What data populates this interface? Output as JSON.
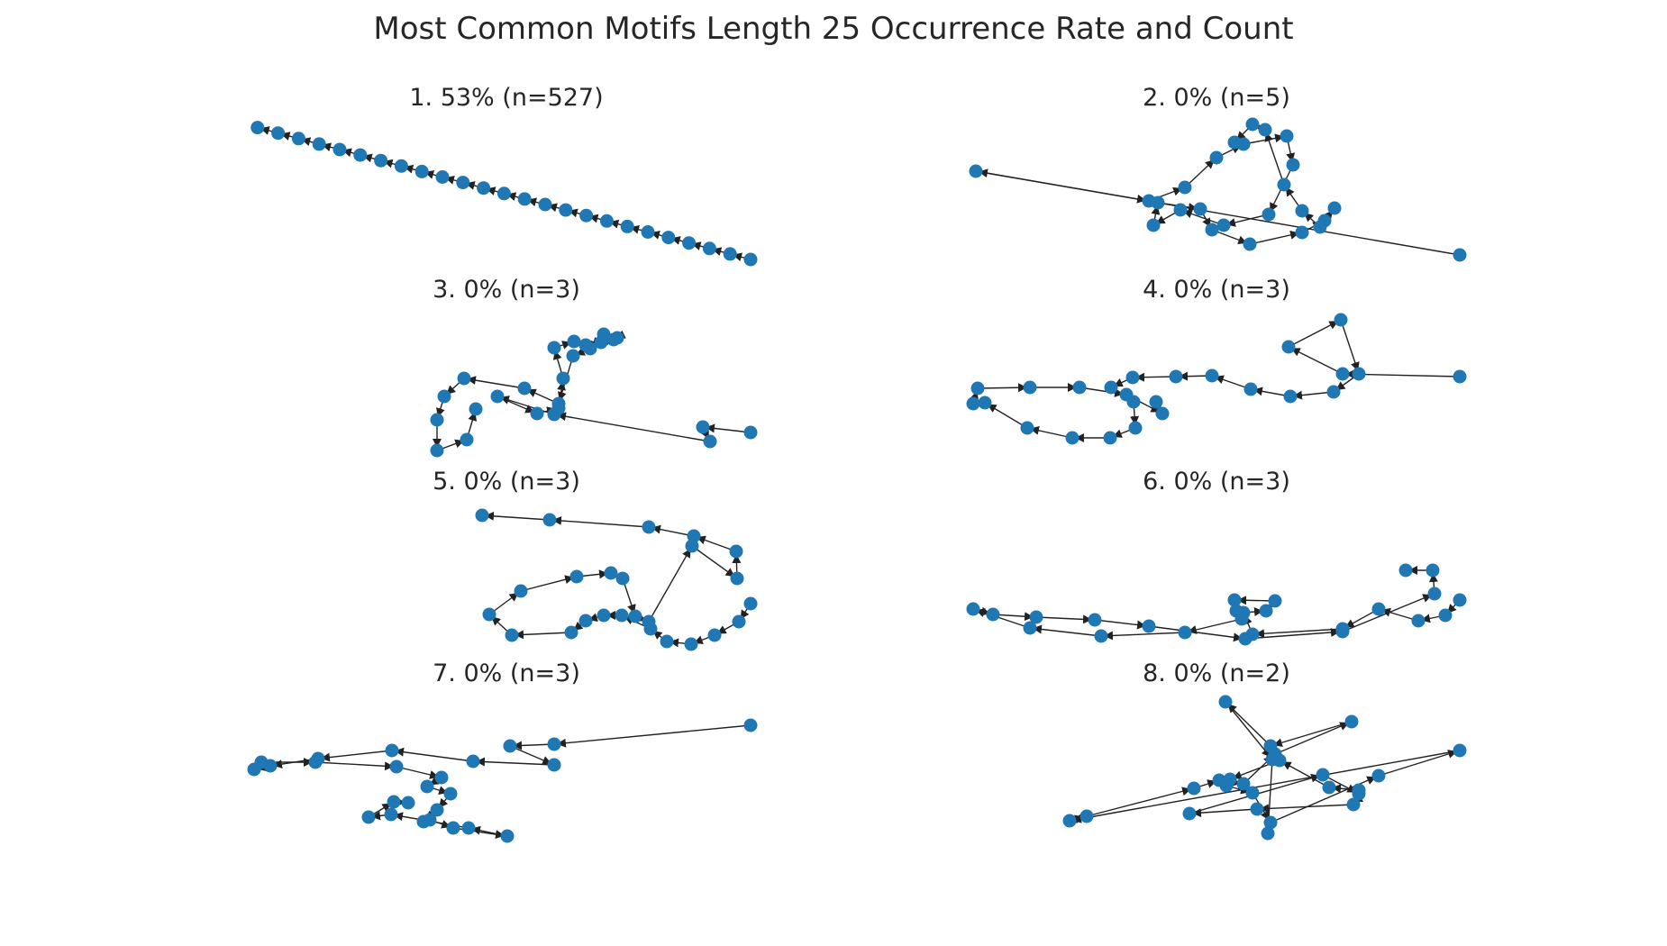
{
  "title": "Most Common Motifs Length 25 Occurrence Rate and Count",
  "node_color": "#1f77b4",
  "edge_color": "#222222",
  "panels": [
    {
      "label": "1. 53% (n=527)"
    },
    {
      "label": "2. 0% (n=5)"
    },
    {
      "label": "3. 0% (n=3)"
    },
    {
      "label": "4. 0% (n=3)"
    },
    {
      "label": "5. 0% (n=3)"
    },
    {
      "label": "6. 0% (n=3)"
    },
    {
      "label": "7. 0% (n=3)"
    },
    {
      "label": "8. 0% (n=2)"
    }
  ]
}
